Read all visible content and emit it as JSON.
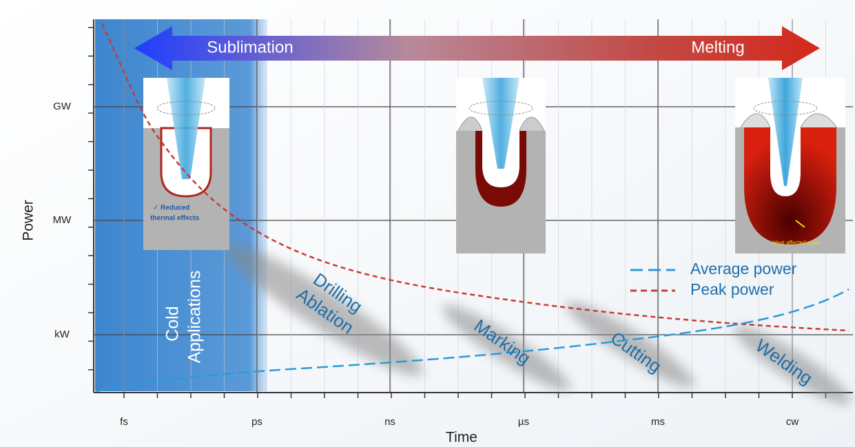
{
  "axes": {
    "y_label": "Power",
    "x_label": "Time",
    "x_ticks": [
      "fs",
      "ps",
      "ns",
      "µs",
      "ms",
      "cw"
    ],
    "y_ticks": [
      "GW",
      "MW",
      "kW"
    ]
  },
  "arrow": {
    "left": "Sublimation",
    "right": "Melting"
  },
  "band": {
    "label_line1": "Cold",
    "label_line2": "Applications"
  },
  "regions": [
    {
      "line1": "Drilling",
      "line2": "Ablation"
    },
    {
      "line1": "Marking"
    },
    {
      "line1": "Cutting"
    },
    {
      "line1": "Welding"
    }
  ],
  "insets": {
    "note_line1": "✓ Reduced",
    "note_line2": "thermal effects",
    "heat_zone": "Heat affected zone"
  },
  "legend": [
    "Average power",
    "Peak power"
  ]
}
